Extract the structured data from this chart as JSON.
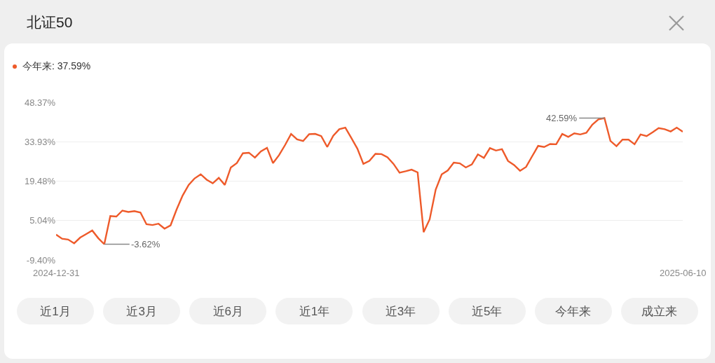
{
  "chart_data": {
    "type": "line",
    "title": "北证50",
    "subtitle": "今年来: 37.59%",
    "categories": [
      "2024-12-31",
      null,
      null,
      null,
      null,
      null,
      null,
      null,
      null,
      null,
      null,
      null,
      null,
      null,
      null,
      null,
      null,
      null,
      null,
      null,
      null,
      null,
      null,
      null,
      null,
      null,
      null,
      null,
      null,
      null,
      null,
      null,
      null,
      null,
      null,
      null,
      null,
      null,
      null,
      null,
      null,
      null,
      null,
      null,
      null,
      null,
      null,
      null,
      null,
      null,
      null,
      null,
      null,
      null,
      null,
      null,
      null,
      null,
      null,
      null,
      null,
      null,
      null,
      null,
      null,
      null,
      null,
      null,
      null,
      null,
      null,
      null,
      null,
      null,
      null,
      null,
      null,
      null,
      null,
      null,
      null,
      null,
      null,
      null,
      null,
      null,
      null,
      null,
      null,
      null,
      null,
      null,
      null,
      null,
      null,
      null,
      null,
      null,
      null,
      null,
      null,
      null,
      null,
      null,
      "2025-06-10"
    ],
    "values": [
      -0.1,
      -1.6,
      -1.9,
      -3.3,
      -1.2,
      0.1,
      1.4,
      -1.4,
      -3.62,
      6.7,
      6.5,
      8.7,
      8.2,
      8.5,
      8.0,
      3.7,
      3.4,
      3.9,
      2.1,
      3.3,
      9.1,
      14.2,
      18.1,
      20.5,
      22.0,
      20.0,
      18.7,
      20.7,
      18.1,
      24.5,
      26.1,
      29.7,
      29.9,
      28.1,
      30.4,
      31.7,
      26.1,
      29.0,
      32.7,
      36.8,
      34.8,
      34.2,
      36.7,
      36.8,
      36.0,
      32.0,
      36.1,
      38.5,
      39.1,
      35.3,
      31.4,
      25.8,
      26.9,
      29.5,
      29.4,
      28.2,
      25.8,
      22.6,
      23.1,
      23.7,
      22.7,
      0.8,
      5.5,
      16.4,
      22.0,
      23.4,
      26.3,
      26.0,
      24.5,
      25.6,
      29.3,
      28.0,
      31.6,
      30.7,
      31.2,
      26.9,
      25.4,
      23.3,
      24.7,
      28.6,
      32.4,
      32.0,
      33.1,
      33.0,
      36.8,
      35.7,
      37.0,
      36.6,
      37.2,
      40.2,
      42.1,
      42.59,
      34.2,
      32.3,
      34.7,
      34.7,
      33.0,
      36.6,
      36.0,
      37.4,
      38.9,
      38.5,
      37.7,
      39.1,
      37.59
    ],
    "value_labels": [
      null,
      null,
      null,
      null,
      null,
      null,
      null,
      null,
      "-3.62%",
      null,
      null,
      null,
      null,
      null,
      null,
      null,
      null,
      null,
      null,
      null,
      null,
      null,
      null,
      null,
      null,
      null,
      null,
      null,
      null,
      null,
      null,
      null,
      null,
      null,
      null,
      null,
      null,
      null,
      null,
      null,
      null,
      null,
      null,
      null,
      null,
      null,
      null,
      null,
      null,
      null,
      null,
      null,
      null,
      null,
      null,
      null,
      null,
      null,
      null,
      null,
      null,
      null,
      null,
      null,
      null,
      null,
      null,
      null,
      null,
      null,
      null,
      null,
      null,
      null,
      null,
      null,
      null,
      null,
      null,
      null,
      null,
      null,
      null,
      null,
      null,
      null,
      null,
      null,
      null,
      null,
      null,
      "42.59%",
      null,
      null,
      null,
      null,
      null,
      null,
      null,
      null,
      null,
      null,
      null,
      null,
      null
    ],
    "color": "#ee5a2a",
    "ylim": [
      -9.4,
      48.37
    ],
    "yticks": [
      {
        "value": -9.4,
        "label": "-9.40%"
      },
      {
        "value": 5.04,
        "label": "5.04%"
      },
      {
        "value": 19.48,
        "label": "19.48%"
      },
      {
        "value": 33.93,
        "label": "33.93%"
      },
      {
        "value": 48.37,
        "label": "48.37%"
      }
    ],
    "grid": "y",
    "marker": "none",
    "line_style": "solid",
    "annotations": [
      "近1月",
      "近3月",
      "近6月",
      "近1年",
      "近3年",
      "近5年",
      "今年来",
      "成立来"
    ]
  }
}
